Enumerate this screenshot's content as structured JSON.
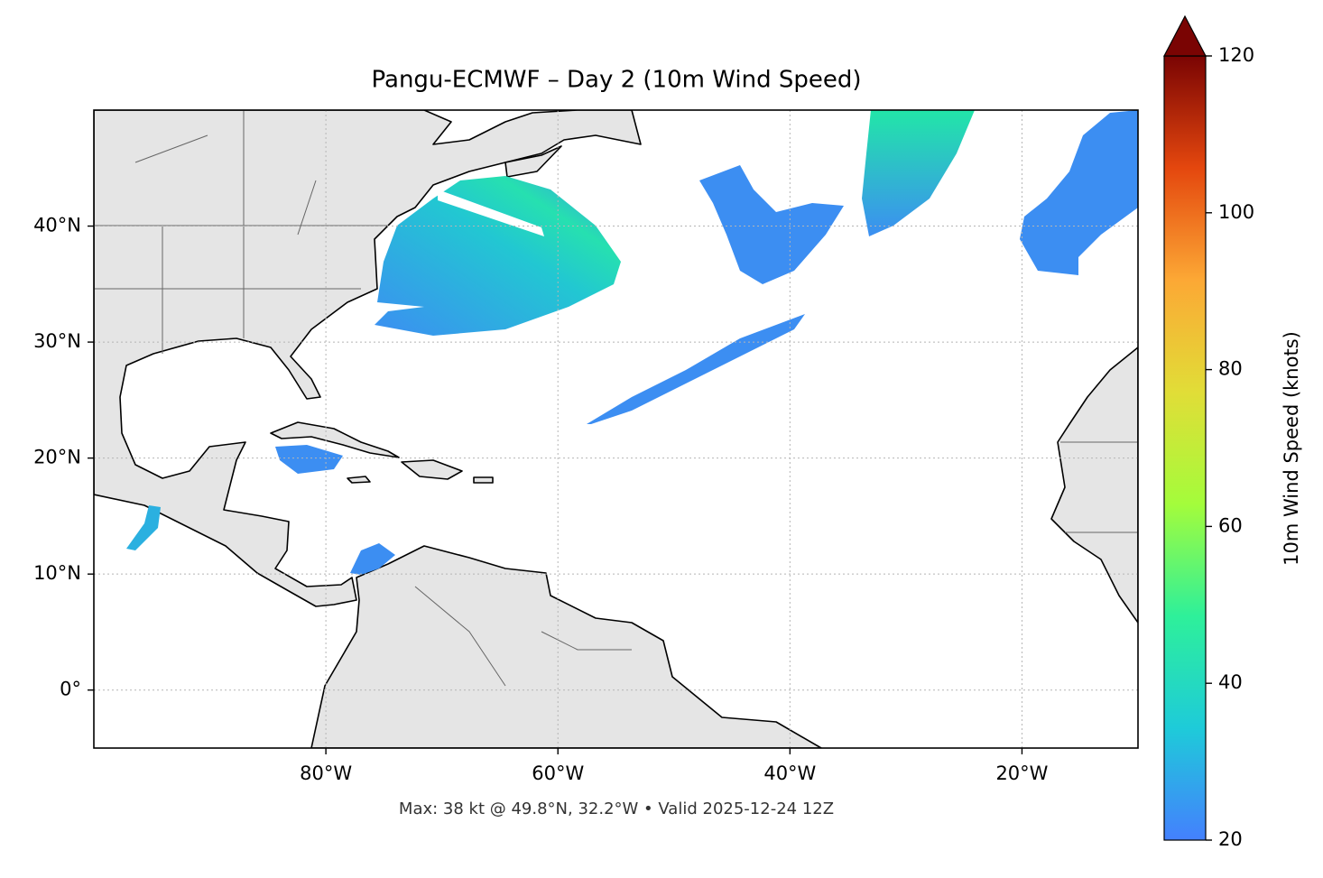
{
  "chart_data": {
    "type": "map",
    "title": "Pangu-ECMWF – Day 2 (10m Wind Speed)",
    "note": "Max: 38 kt @ 49.8°N, 32.2°W • Valid 2025-12-24 12Z",
    "xlim": [
      -100,
      -10
    ],
    "ylim": [
      -5,
      50
    ],
    "xticks": [
      {
        "value": -80,
        "label": "80°W"
      },
      {
        "value": -60,
        "label": "60°W"
      },
      {
        "value": -40,
        "label": "40°W"
      },
      {
        "value": -20,
        "label": "20°W"
      }
    ],
    "yticks": [
      {
        "value": 0,
        "label": "0°"
      },
      {
        "value": 10,
        "label": "10°N"
      },
      {
        "value": 20,
        "label": "20°N"
      },
      {
        "value": 30,
        "label": "30°N"
      },
      {
        "value": 40,
        "label": "40°N"
      }
    ],
    "grid": true,
    "colorbar": {
      "label": "10m Wind Speed (knots)",
      "lim": [
        20,
        120
      ],
      "ticks": [
        20,
        40,
        60,
        80,
        100,
        120
      ],
      "extend": "max",
      "colors": [
        "#4480fe",
        "#1ecbd9",
        "#2ef09a",
        "#a4fc3b",
        "#e1dd37",
        "#fca835",
        "#e4470e",
        "#7a0403"
      ]
    }
  }
}
